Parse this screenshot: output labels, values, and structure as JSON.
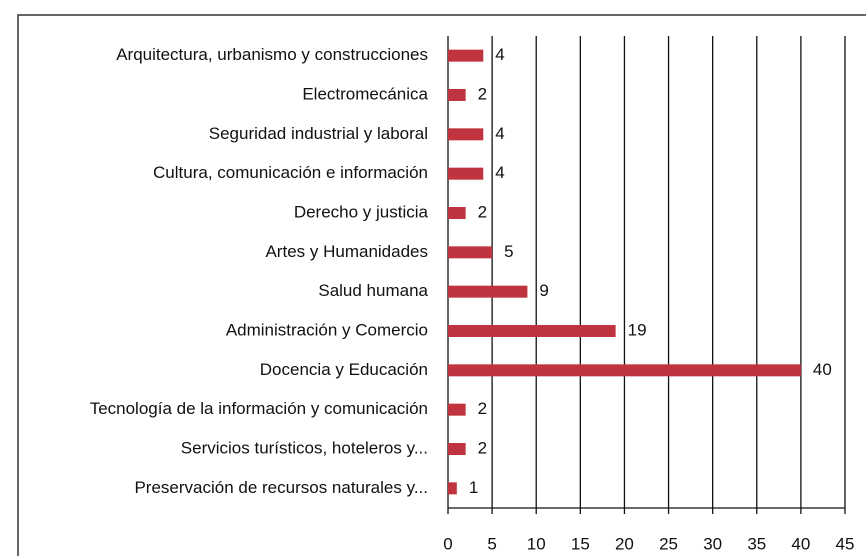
{
  "chart_data": {
    "type": "bar",
    "orientation": "horizontal",
    "categories": [
      "Arquitectura, urbanismo y construcciones",
      "Electromecánica",
      "Seguridad industrial y laboral",
      "Cultura, comunicación e información",
      "Derecho y justicia",
      "Artes y Humanidades",
      "Salud humana",
      "Administración y Comercio",
      "Docencia y Educación",
      "Tecnología de la información y comunicación",
      "Servicios turísticos, hoteleros y...",
      "Preservación de recursos naturales y..."
    ],
    "values": [
      4,
      2,
      4,
      4,
      2,
      5,
      9,
      19,
      40,
      2,
      2,
      1
    ],
    "color": "#c0343f",
    "xlim": [
      0,
      45
    ],
    "xticks": [
      0,
      5,
      10,
      15,
      20,
      25,
      30,
      35,
      40,
      45
    ],
    "grid": true
  }
}
